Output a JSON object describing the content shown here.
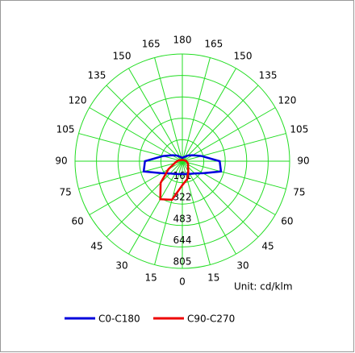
{
  "chart_data": {
    "type": "polar",
    "unit": "Unit: cd/klm",
    "x": [
      0,
      15,
      30,
      45,
      60,
      75,
      90,
      105,
      120,
      135,
      150,
      165,
      180,
      195,
      210,
      225,
      240,
      255,
      270,
      285,
      300,
      315,
      330,
      345
    ],
    "rlim": [
      0,
      805
    ],
    "rticks": [
      161,
      322,
      483,
      644,
      805
    ],
    "angle_ticks": [
      0,
      15,
      30,
      45,
      60,
      75,
      90,
      105,
      120,
      135,
      150,
      165,
      180,
      {
        "value": 195,
        "label": "165"
      },
      {
        "value": 210,
        "label": "150"
      },
      {
        "value": 225,
        "label": "135"
      },
      {
        "value": 240,
        "label": "120"
      },
      {
        "value": 255,
        "label": "105"
      },
      {
        "value": 270,
        "label": "90"
      },
      {
        "value": 285,
        "label": "75"
      },
      {
        "value": 300,
        "label": "60"
      },
      {
        "value": 315,
        "label": "45"
      },
      {
        "value": 330,
        "label": "30"
      },
      {
        "value": 345,
        "label": "15"
      }
    ],
    "grid_color": "#22dd22",
    "series": [
      {
        "name": "C0-C180",
        "color": "#0000dd",
        "values": [
          95,
          100,
          110,
          130,
          180,
          300,
          280,
          150,
          90,
          60,
          40,
          30,
          25,
          30,
          40,
          60,
          90,
          150,
          280,
          300,
          180,
          130,
          110,
          100
        ]
      },
      {
        "name": "C90-C270",
        "color": "#ee0000",
        "values": [
          180,
          140,
          90,
          60,
          50,
          40,
          30,
          20,
          15,
          12,
          10,
          10,
          10,
          10,
          10,
          12,
          15,
          25,
          40,
          60,
          120,
          230,
          330,
          300
        ]
      }
    ]
  }
}
